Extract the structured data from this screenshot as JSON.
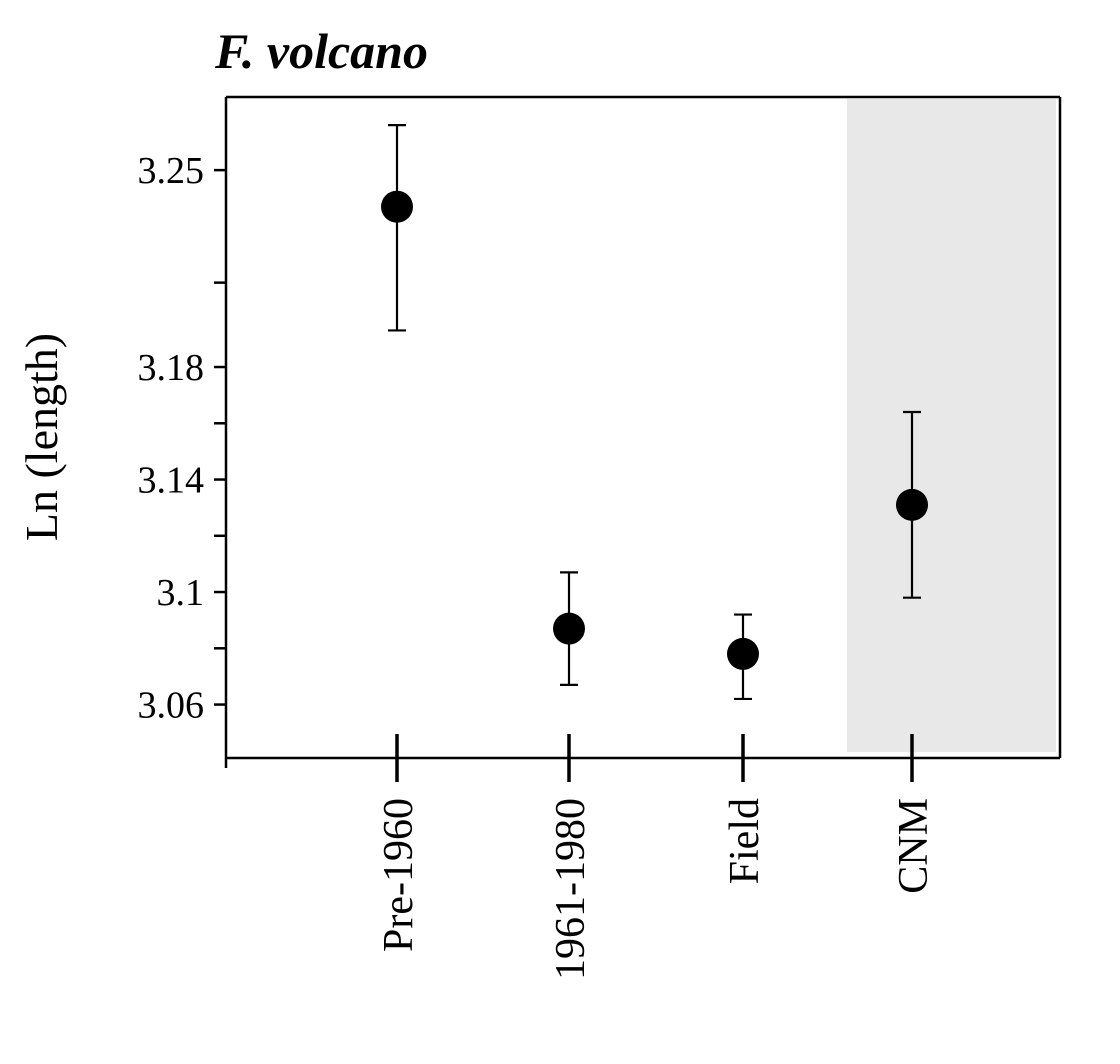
{
  "chart_data": {
    "type": "scatter",
    "title": "F. volcano",
    "xlabel": "",
    "ylabel": "Ln (length)",
    "categories": [
      "Pre-1960",
      "1961-1980",
      "Field",
      "CNM"
    ],
    "series": [
      {
        "values": [
          3.237,
          3.087,
          3.078,
          3.131
        ],
        "error_low": [
          3.193,
          3.067,
          3.062,
          3.098
        ],
        "error_high": [
          3.266,
          3.107,
          3.092,
          3.164
        ]
      }
    ],
    "y_tick_labels": [
      {
        "value": 3.06,
        "label": "3.06"
      },
      {
        "value": 3.1,
        "label": "3.1"
      },
      {
        "value": 3.14,
        "label": "3.14"
      },
      {
        "value": 3.18,
        "label": "3.18"
      },
      {
        "value": 3.25,
        "label": "3.25"
      }
    ],
    "y_minor_ticks": [
      3.08,
      3.12,
      3.16,
      3.21
    ],
    "ylim": [
      3.041,
      3.276
    ],
    "highlighted_category": "CNM",
    "highlight_color": "#e8e8e8",
    "marker_color": "#000000",
    "grid": false,
    "legend": "none"
  }
}
